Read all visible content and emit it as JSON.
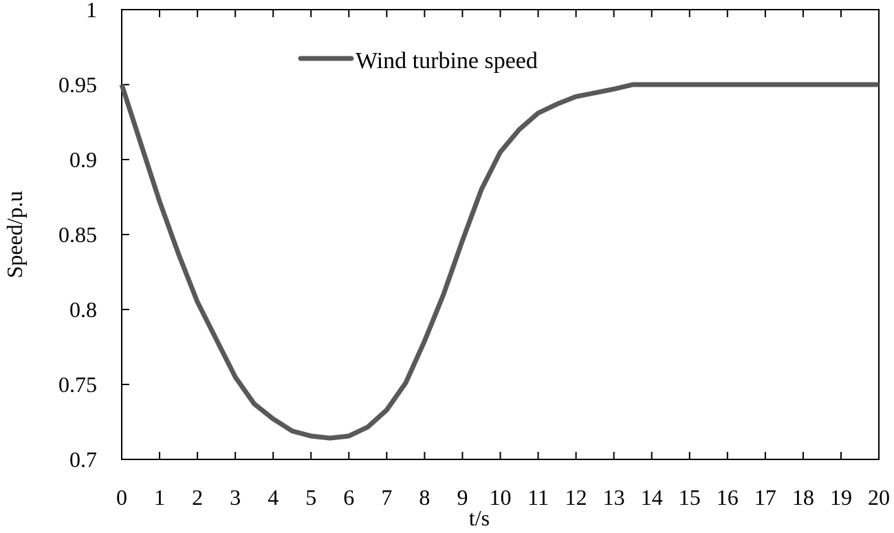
{
  "chart_data": {
    "type": "line",
    "title": "",
    "xlabel": "t/s",
    "ylabel": "Speed/p.u",
    "xlim": [
      0,
      20
    ],
    "ylim": [
      0.7,
      1.0
    ],
    "x_ticks": [
      0,
      1,
      2,
      3,
      4,
      5,
      6,
      7,
      8,
      9,
      10,
      11,
      12,
      13,
      14,
      15,
      16,
      17,
      18,
      19,
      20
    ],
    "x_tick_labels": [
      "0",
      "1",
      "2",
      "3",
      "4",
      "5",
      "6",
      "7",
      "8",
      "9",
      "10",
      "11",
      "12",
      "13",
      "14",
      "15",
      "16",
      "17",
      "18",
      "19",
      "20"
    ],
    "y_ticks": [
      0.7,
      0.75,
      0.8,
      0.85,
      0.9,
      0.95,
      1.0
    ],
    "y_tick_labels": [
      "0.7",
      "0.75",
      "0.8",
      "0.85",
      "0.9",
      "0.95",
      "1"
    ],
    "grid": false,
    "legend_position": "upper-center-left",
    "series": [
      {
        "name": "Wind turbine speed",
        "color": "#595959",
        "x": [
          0,
          0.5,
          1,
          1.5,
          2,
          2.5,
          3,
          3.5,
          4,
          4.5,
          5,
          5.5,
          6,
          6.5,
          7,
          7.5,
          8,
          8.5,
          9,
          9.5,
          10,
          10.5,
          11,
          11.5,
          12,
          12.5,
          13,
          13.5,
          14,
          15,
          16,
          17,
          18,
          19,
          20
        ],
        "values": [
          0.95,
          0.911,
          0.872,
          0.837,
          0.805,
          0.78,
          0.755,
          0.737,
          0.727,
          0.719,
          0.7156,
          0.7142,
          0.7156,
          0.7216,
          0.733,
          0.751,
          0.779,
          0.81,
          0.846,
          0.88,
          0.905,
          0.92,
          0.931,
          0.937,
          0.942,
          0.9445,
          0.947,
          0.95,
          0.95,
          0.95,
          0.95,
          0.95,
          0.95,
          0.95,
          0.95
        ]
      }
    ]
  },
  "legend": {
    "label": "Wind turbine speed"
  },
  "axes": {
    "xlabel": "t/s",
    "ylabel": "Speed/p.u"
  }
}
